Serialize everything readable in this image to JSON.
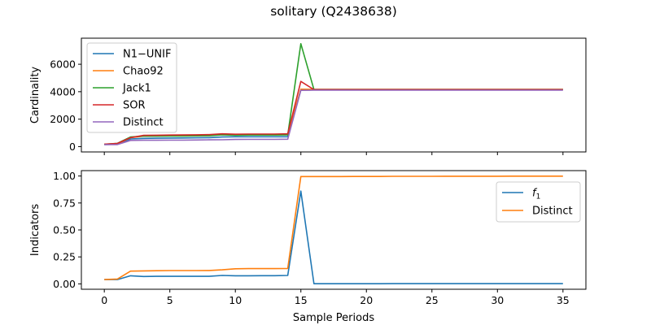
{
  "figure_title": "solitary (Q2438638)",
  "chart_data": [
    {
      "type": "line",
      "title": "",
      "xlabel": "",
      "ylabel": "Cardinality",
      "xlim": [
        -1.75,
        36.75
      ],
      "ylim": [
        -390,
        7900
      ],
      "xticks": [
        0,
        5,
        10,
        15,
        20,
        25,
        30,
        35
      ],
      "xtick_labels_visible": false,
      "yticks": [
        0,
        2000,
        4000,
        6000
      ],
      "legend": "upper-left",
      "grid": false,
      "x": [
        0,
        1,
        2,
        3,
        4,
        5,
        6,
        7,
        8,
        9,
        10,
        11,
        12,
        13,
        14,
        15,
        16,
        17,
        18,
        19,
        20,
        21,
        22,
        23,
        24,
        25,
        26,
        27,
        28,
        29,
        30,
        31,
        32,
        33,
        34,
        35
      ],
      "series": [
        {
          "name": "N1−UNIF",
          "color": "#1f77b4",
          "values": [
            150,
            170,
            560,
            600,
            610,
            620,
            630,
            640,
            650,
            700,
            720,
            720,
            720,
            720,
            720,
            4150,
            4160,
            4160,
            4160,
            4160,
            4160,
            4160,
            4160,
            4160,
            4160,
            4160,
            4160,
            4160,
            4160,
            4160,
            4160,
            4160,
            4160,
            4160,
            4160,
            4160
          ]
        },
        {
          "name": "Chao92",
          "color": "#ff7f0e",
          "values": [
            160,
            200,
            650,
            760,
            780,
            790,
            800,
            810,
            830,
            890,
            870,
            880,
            880,
            880,
            890,
            4180,
            4170,
            4170,
            4170,
            4170,
            4170,
            4170,
            4170,
            4170,
            4170,
            4170,
            4170,
            4170,
            4170,
            4170,
            4170,
            4170,
            4170,
            4170,
            4170,
            4170
          ]
        },
        {
          "name": "Jack1",
          "color": "#2ca02c",
          "values": [
            170,
            240,
            700,
            760,
            760,
            770,
            770,
            780,
            790,
            860,
            830,
            840,
            840,
            840,
            850,
            7500,
            4160,
            4160,
            4160,
            4160,
            4160,
            4160,
            4160,
            4160,
            4160,
            4160,
            4160,
            4160,
            4160,
            4160,
            4160,
            4160,
            4160,
            4160,
            4160,
            4160
          ]
        },
        {
          "name": "SOR",
          "color": "#d62728",
          "values": [
            180,
            230,
            650,
            820,
            830,
            840,
            850,
            860,
            870,
            930,
            900,
            910,
            910,
            910,
            930,
            4750,
            4150,
            4150,
            4150,
            4150,
            4150,
            4150,
            4150,
            4150,
            4150,
            4150,
            4150,
            4150,
            4150,
            4150,
            4150,
            4150,
            4150,
            4150,
            4150,
            4150
          ]
        },
        {
          "name": "Distinct",
          "color": "#9467bd",
          "values": [
            140,
            150,
            450,
            460,
            460,
            470,
            470,
            480,
            490,
            500,
            520,
            530,
            530,
            530,
            540,
            4100,
            4110,
            4110,
            4110,
            4110,
            4110,
            4110,
            4110,
            4110,
            4110,
            4110,
            4110,
            4110,
            4110,
            4110,
            4110,
            4110,
            4110,
            4110,
            4110,
            4110
          ]
        }
      ]
    },
    {
      "type": "line",
      "title": "",
      "xlabel": "Sample Periods",
      "ylabel": "Indicators",
      "xlim": [
        -1.75,
        36.75
      ],
      "ylim": [
        -0.05,
        1.05
      ],
      "xticks": [
        0,
        5,
        10,
        15,
        20,
        25,
        30,
        35
      ],
      "yticks": [
        0.0,
        0.25,
        0.5,
        0.75,
        1.0
      ],
      "legend": "upper-right",
      "grid": false,
      "x": [
        0,
        1,
        2,
        3,
        4,
        5,
        6,
        7,
        8,
        9,
        10,
        11,
        12,
        13,
        14,
        15,
        16,
        17,
        18,
        19,
        20,
        21,
        22,
        23,
        24,
        25,
        26,
        27,
        28,
        29,
        30,
        31,
        32,
        33,
        34,
        35
      ],
      "series": [
        {
          "name": "f1",
          "color": "#1f77b4",
          "values": [
            0.04,
            0.04,
            0.075,
            0.068,
            0.07,
            0.07,
            0.07,
            0.07,
            0.07,
            0.078,
            0.075,
            0.075,
            0.076,
            0.076,
            0.078,
            0.86,
            0.001,
            0.001,
            0.001,
            0.001,
            0.001,
            0.001,
            0.002,
            0.002,
            0.002,
            0.002,
            0.002,
            0.002,
            0.002,
            0.002,
            0.002,
            0.002,
            0.002,
            0.002,
            0.002,
            0.002
          ]
        },
        {
          "name": "Distinct",
          "color": "#ff7f0e",
          "values": [
            0.04,
            0.045,
            0.118,
            0.12,
            0.122,
            0.123,
            0.123,
            0.123,
            0.124,
            0.13,
            0.14,
            0.141,
            0.141,
            0.141,
            0.143,
            0.995,
            0.995,
            0.995,
            0.995,
            0.996,
            0.996,
            0.996,
            0.997,
            0.997,
            0.997,
            0.997,
            0.998,
            0.998,
            0.998,
            0.998,
            0.998,
            0.999,
            0.999,
            0.999,
            0.999,
            0.999
          ]
        }
      ]
    }
  ]
}
